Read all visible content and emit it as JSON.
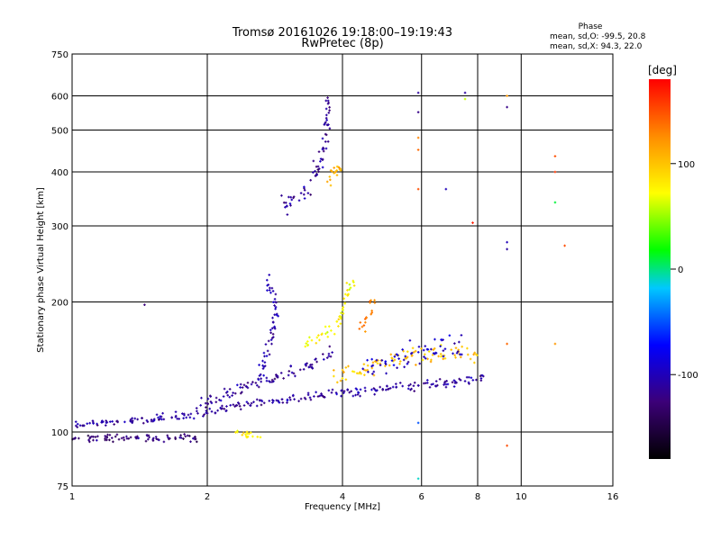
{
  "chart_data": {
    "type": "scatter",
    "title": "Tromsø 20161026 19:18:00–19:19:43",
    "subtitle": "RwPretec (8p)",
    "xlabel": "Frequency [MHz]",
    "ylabel": "Stationary phase Virtual Height [km]",
    "x_scale": "log",
    "y_scale": "log",
    "xlim": [
      1,
      16
    ],
    "ylim": [
      75,
      750
    ],
    "x_ticks": [
      {
        "value": 1,
        "label": "1"
      },
      {
        "value": 2,
        "label": "2"
      },
      {
        "value": 4,
        "label": "4"
      },
      {
        "value": 6,
        "label": "6"
      },
      {
        "value": 8,
        "label": "8"
      },
      {
        "value": 10,
        "label": "10"
      },
      {
        "value": 16,
        "label": "16"
      }
    ],
    "y_ticks": [
      {
        "value": 75,
        "label": "75"
      },
      {
        "value": 100,
        "label": "100"
      },
      {
        "value": 200,
        "label": "200"
      },
      {
        "value": 300,
        "label": "300"
      },
      {
        "value": 400,
        "label": "400"
      },
      {
        "value": 500,
        "label": "500"
      },
      {
        "value": 600,
        "label": "600"
      },
      {
        "value": 750,
        "label": "750"
      }
    ],
    "grid": true,
    "info": {
      "heading": "Phase",
      "line1": "mean, sd,O: -99.5, 20.8",
      "line2": "mean, sd,X: 94.3, 22.0"
    },
    "colorbar": {
      "label": "[deg]",
      "range": [
        -180,
        180
      ],
      "ticks": [
        {
          "value": 100,
          "label": "100"
        },
        {
          "value": 0,
          "label": "0"
        },
        {
          "value": -100,
          "label": "-100"
        }
      ]
    },
    "traces": [
      {
        "x": [
          1.0,
          1.18,
          1.4,
          1.65,
          1.9,
          2.05,
          2.3,
          2.6,
          2.8,
          3.0,
          3.2,
          3.4,
          3.6,
          3.8,
          4.0,
          4.3,
          4.6,
          5.0,
          5.5,
          6.0,
          6.5,
          7.0,
          7.5,
          8.0,
          8.4
        ],
        "y": [
          103,
          105,
          106,
          108,
          110,
          112,
          115,
          117,
          118,
          119,
          120,
          121,
          122,
          123,
          124,
          124,
          125,
          126,
          127,
          128,
          129,
          130,
          131,
          133,
          135
        ],
        "phase": -110,
        "jitter": 0.015
      },
      {
        "x": [
          1.0,
          1.2,
          1.4,
          1.6,
          1.8,
          1.92
        ],
        "y": [
          96,
          97,
          97,
          97,
          97,
          97
        ],
        "phase": -125,
        "jitter": 0.012
      },
      {
        "x": [
          1.9,
          2.1,
          2.3,
          2.6,
          2.8,
          3.0,
          3.2,
          3.4,
          3.6,
          3.8
        ],
        "y": [
          115,
          120,
          125,
          130,
          133,
          137,
          140,
          144,
          148,
          155
        ],
        "phase": -112,
        "jitter": 0.02
      },
      {
        "x": [
          2.6,
          2.7,
          2.8,
          2.85,
          2.8,
          2.7
        ],
        "y": [
          130,
          150,
          170,
          190,
          210,
          225
        ],
        "phase": -105,
        "jitter": 0.035
      },
      {
        "x": [
          2.9,
          3.0,
          3.2,
          3.4,
          3.5,
          3.6,
          3.65,
          3.7,
          3.7
        ],
        "y": [
          330,
          340,
          350,
          370,
          400,
          430,
          470,
          530,
          600
        ],
        "phase": -115,
        "jitter": 0.03
      },
      {
        "x": [
          3.7,
          3.8,
          3.9,
          4.0
        ],
        "y": [
          380,
          395,
          405,
          415
        ],
        "phase": 110,
        "jitter": 0.02
      },
      {
        "x": [
          2.3,
          2.45,
          2.65
        ],
        "y": [
          100,
          99,
          98
        ],
        "phase": 80,
        "jitter": 0.01
      },
      {
        "x": [
          3.8,
          4.2,
          4.6,
          5.0,
          5.5,
          6.0,
          6.5,
          7.0,
          7.5,
          8.0
        ],
        "y": [
          135,
          138,
          142,
          145,
          148,
          150,
          152,
          153,
          152,
          150
        ],
        "phase": 100,
        "jitter": 0.03
      },
      {
        "x": [
          4.4,
          4.55,
          4.7
        ],
        "y": [
          170,
          185,
          200
        ],
        "phase": 130,
        "jitter": 0.03
      },
      {
        "x": [
          3.3,
          3.5,
          3.7,
          3.9,
          4.0,
          4.1,
          4.3
        ],
        "y": [
          160,
          165,
          170,
          180,
          195,
          210,
          230
        ],
        "phase": 75,
        "jitter": 0.03
      },
      {
        "x": [
          4.5,
          5.0,
          5.5,
          6.0,
          6.5,
          7.0,
          7.5
        ],
        "y": [
          140,
          145,
          150,
          152,
          155,
          158,
          160
        ],
        "phase": -95,
        "jitter": 0.04
      }
    ],
    "singles": [
      {
        "x": 5.9,
        "y": 610,
        "phase": -110
      },
      {
        "x": 5.9,
        "y": 550,
        "phase": -120
      },
      {
        "x": 5.9,
        "y": 480,
        "phase": 130
      },
      {
        "x": 5.9,
        "y": 450,
        "phase": 140
      },
      {
        "x": 5.9,
        "y": 365,
        "phase": 150
      },
      {
        "x": 6.8,
        "y": 365,
        "phase": -100
      },
      {
        "x": 7.5,
        "y": 610,
        "phase": -110
      },
      {
        "x": 7.5,
        "y": 590,
        "phase": 60
      },
      {
        "x": 7.8,
        "y": 305,
        "phase": 170
      },
      {
        "x": 9.3,
        "y": 600,
        "phase": 120
      },
      {
        "x": 9.3,
        "y": 565,
        "phase": -120
      },
      {
        "x": 9.3,
        "y": 275,
        "phase": -100
      },
      {
        "x": 9.3,
        "y": 265,
        "phase": -110
      },
      {
        "x": 9.3,
        "y": 160,
        "phase": 140
      },
      {
        "x": 9.3,
        "y": 93,
        "phase": 150
      },
      {
        "x": 11.9,
        "y": 435,
        "phase": 150
      },
      {
        "x": 11.9,
        "y": 400,
        "phase": 160
      },
      {
        "x": 11.9,
        "y": 340,
        "phase": 10
      },
      {
        "x": 11.9,
        "y": 160,
        "phase": 120
      },
      {
        "x": 12.5,
        "y": 270,
        "phase": 150
      },
      {
        "x": 1.45,
        "y": 197,
        "phase": -125
      },
      {
        "x": 5.9,
        "y": 78,
        "phase": -10
      },
      {
        "x": 5.9,
        "y": 105,
        "phase": -50
      }
    ]
  }
}
